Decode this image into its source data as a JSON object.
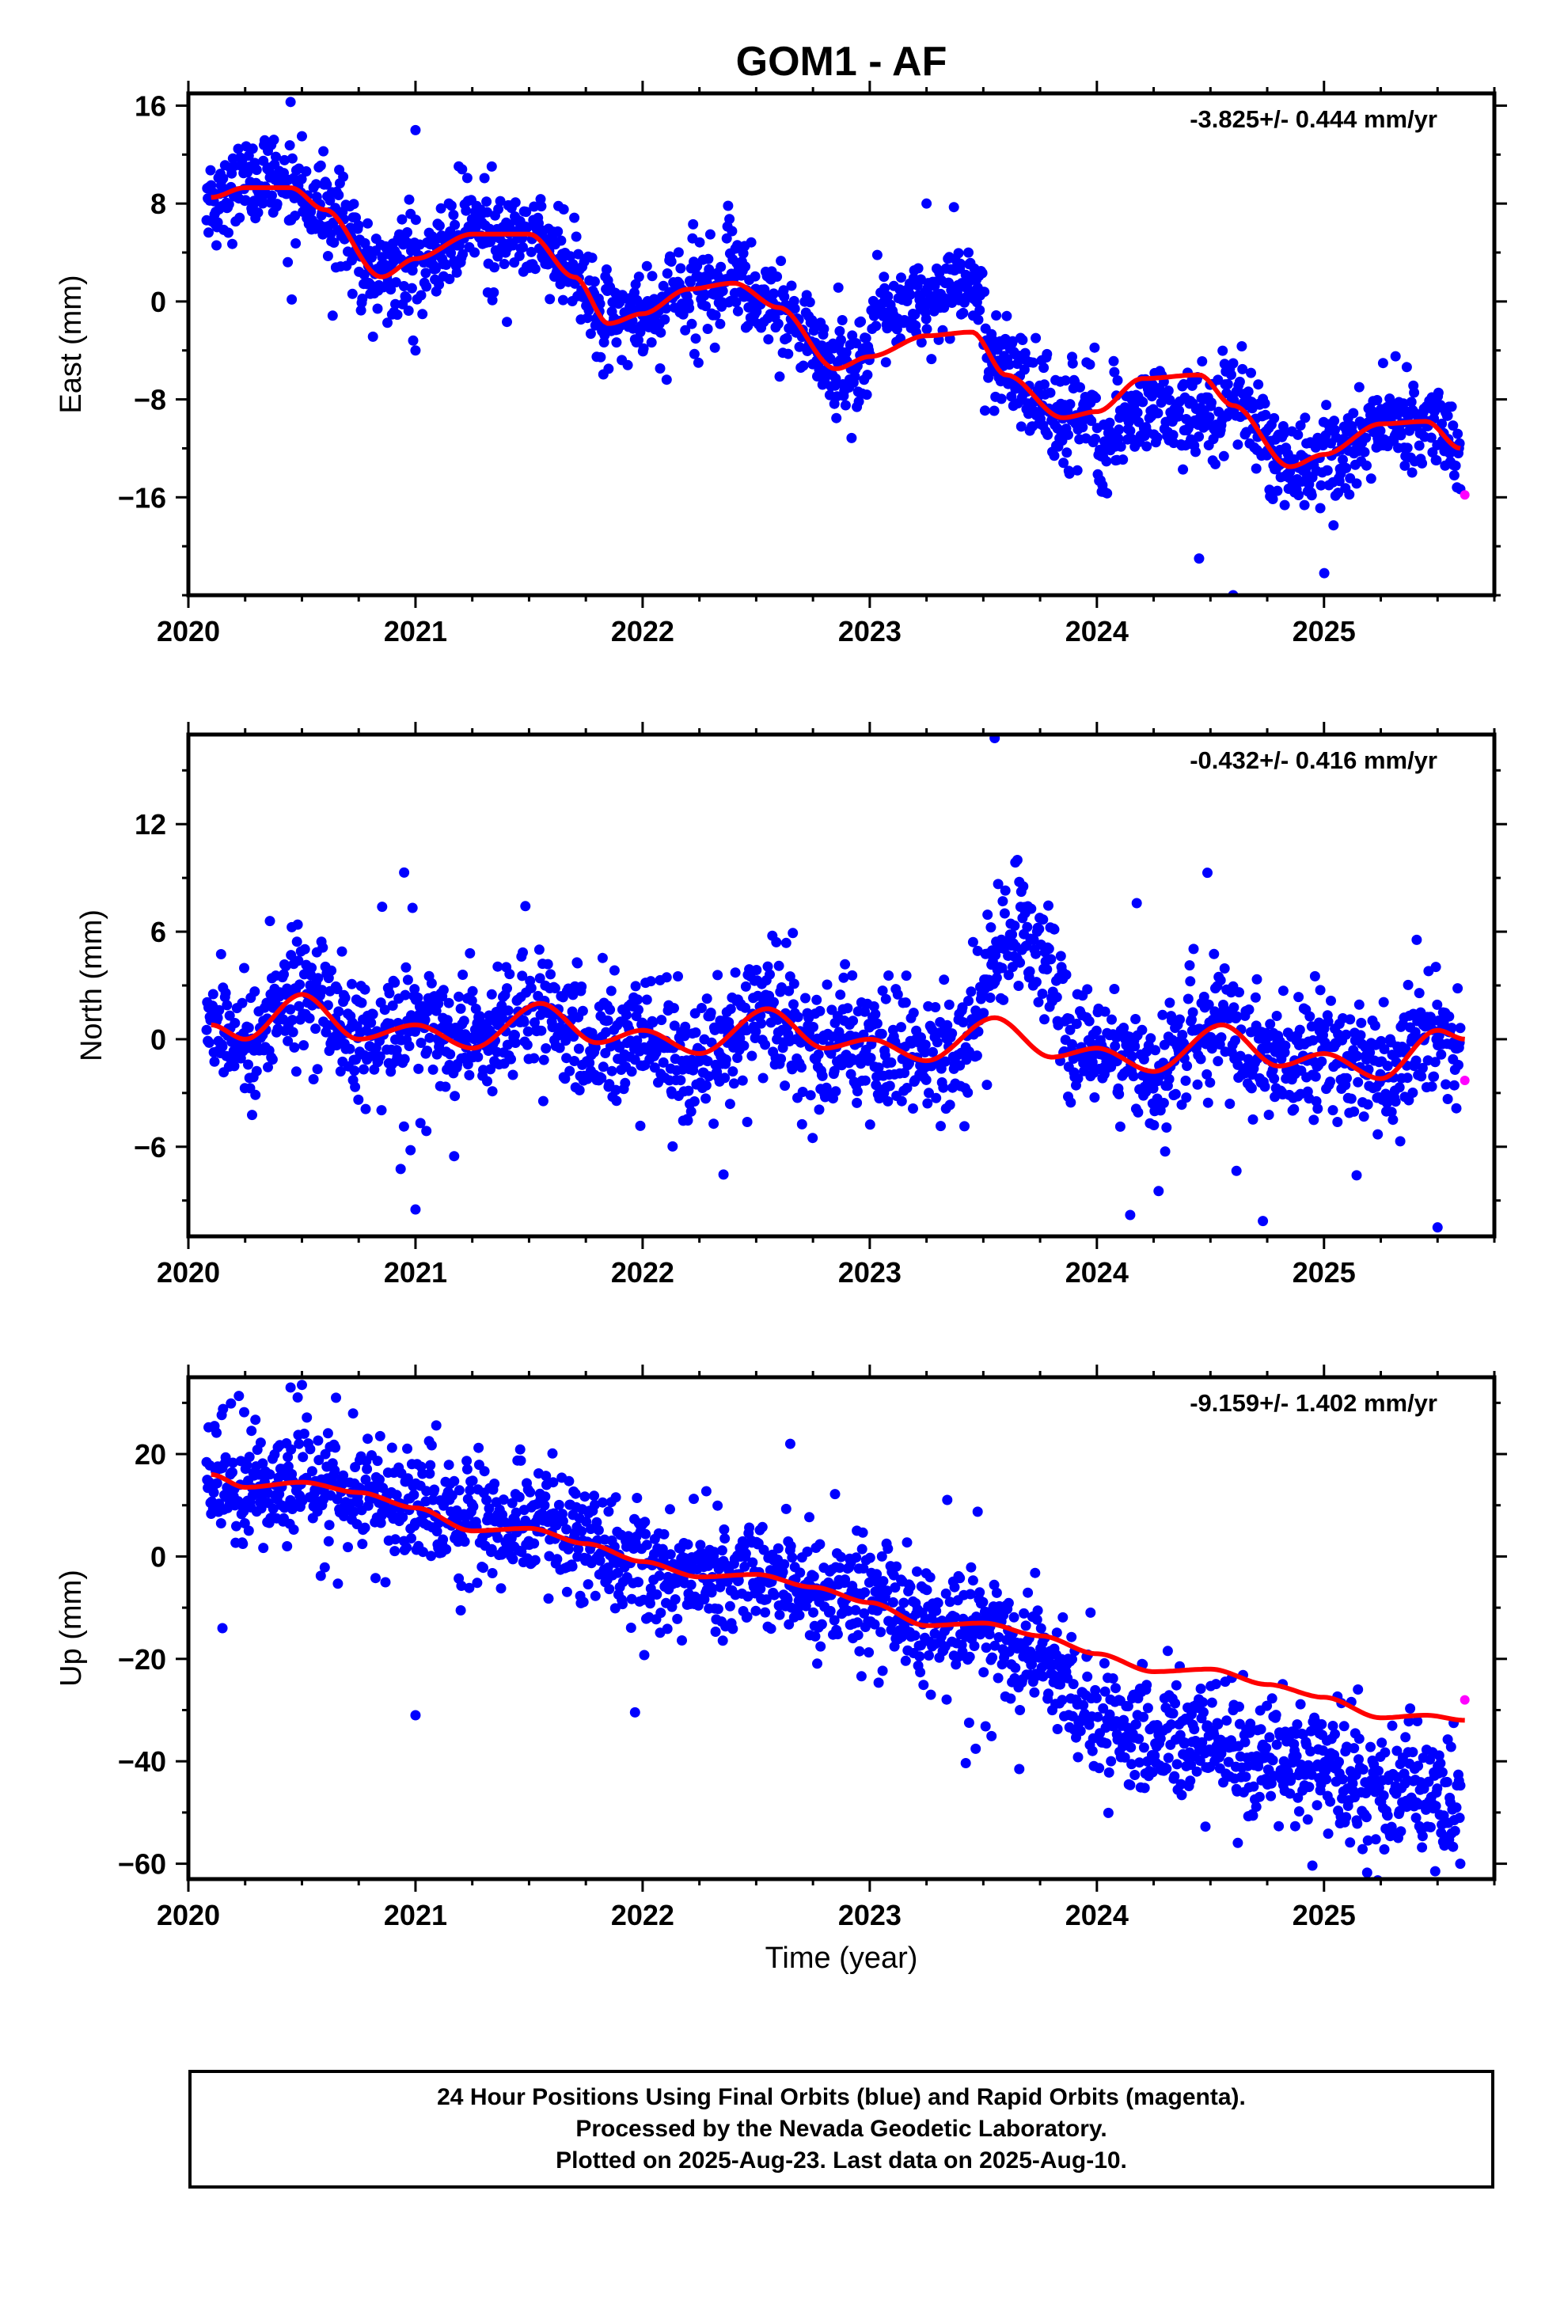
{
  "title": "GOM1 - AF",
  "colors": {
    "final": "#0000ff",
    "rapid": "#ff00ff",
    "model": "#ff0000",
    "axes": "#000000"
  },
  "chart_data": [
    {
      "type": "scatter",
      "name": "east",
      "ylabel": "East (mm)",
      "xlabel": "",
      "rate_label": "-3.825+/- 0.444 mm/yr",
      "xlim": [
        2020.0,
        2025.75
      ],
      "ylim": [
        -24,
        17
      ],
      "yticks": [
        -16,
        -8,
        0,
        8,
        16
      ],
      "yticklabels": [
        "−16",
        "−8",
        "0",
        "8",
        "16"
      ],
      "xticks": [
        2020,
        2021,
        2022,
        2023,
        2024,
        2025
      ],
      "xticklabels": [
        "2020",
        "2021",
        "2022",
        "2023",
        "2024",
        "2025"
      ],
      "grid": false,
      "model_keypoints": [
        [
          2020.1,
          8.5
        ],
        [
          2020.25,
          9.3
        ],
        [
          2020.45,
          9.3
        ],
        [
          2020.6,
          7.5
        ],
        [
          2020.85,
          2.0
        ],
        [
          2021.0,
          3.5
        ],
        [
          2021.25,
          5.5
        ],
        [
          2021.5,
          5.5
        ],
        [
          2021.7,
          2.0
        ],
        [
          2021.85,
          -1.8
        ],
        [
          2022.0,
          -1.0
        ],
        [
          2022.2,
          1.0
        ],
        [
          2022.4,
          1.5
        ],
        [
          2022.6,
          -0.5
        ],
        [
          2022.85,
          -5.5
        ],
        [
          2023.0,
          -4.5
        ],
        [
          2023.25,
          -2.8
        ],
        [
          2023.45,
          -2.5
        ],
        [
          2023.6,
          -6.0
        ],
        [
          2023.85,
          -9.5
        ],
        [
          2024.0,
          -9.0
        ],
        [
          2024.2,
          -6.3
        ],
        [
          2024.45,
          -6.0
        ],
        [
          2024.6,
          -8.5
        ],
        [
          2024.85,
          -13.5
        ],
        [
          2025.0,
          -12.5
        ],
        [
          2025.25,
          -10.0
        ],
        [
          2025.45,
          -9.8
        ],
        [
          2025.6,
          -12.0
        ]
      ],
      "noise_sd": 1.8,
      "rapid_points": [
        [
          2025.62,
          -15.8
        ]
      ],
      "outliers": [
        [
          2020.45,
          16.3
        ],
        [
          2020.5,
          13.5
        ],
        [
          2021.0,
          14.0
        ],
        [
          2021.0,
          -4.0
        ],
        [
          2021.85,
          -5.5
        ],
        [
          2023.25,
          8.0
        ],
        [
          2024.45,
          -21.0
        ],
        [
          2024.6,
          -24.0
        ]
      ]
    },
    {
      "type": "scatter",
      "name": "north",
      "ylabel": "North (mm)",
      "xlabel": "",
      "rate_label": "-0.432+/- 0.416 mm/yr",
      "xlim": [
        2020.0,
        2025.75
      ],
      "ylim": [
        -11,
        17
      ],
      "yticks": [
        -6,
        0,
        6,
        12
      ],
      "yticklabels": [
        "−6",
        "0",
        "6",
        "12"
      ],
      "xticks": [
        2020,
        2021,
        2022,
        2023,
        2024,
        2025
      ],
      "xticklabels": [
        "2020",
        "2021",
        "2022",
        "2023",
        "2024",
        "2025"
      ],
      "grid": false,
      "model_keypoints": [
        [
          2020.1,
          0.8
        ],
        [
          2020.25,
          0.0
        ],
        [
          2020.5,
          2.5
        ],
        [
          2020.75,
          0.0
        ],
        [
          2021.0,
          0.8
        ],
        [
          2021.25,
          -0.5
        ],
        [
          2021.55,
          2.0
        ],
        [
          2021.8,
          -0.2
        ],
        [
          2022.0,
          0.5
        ],
        [
          2022.25,
          -0.8
        ],
        [
          2022.55,
          1.7
        ],
        [
          2022.8,
          -0.5
        ],
        [
          2023.0,
          0.0
        ],
        [
          2023.25,
          -1.2
        ],
        [
          2023.55,
          1.2
        ],
        [
          2023.8,
          -1.0
        ],
        [
          2024.0,
          -0.5
        ],
        [
          2024.25,
          -1.8
        ],
        [
          2024.55,
          0.8
        ],
        [
          2024.8,
          -1.5
        ],
        [
          2025.0,
          -0.8
        ],
        [
          2025.25,
          -2.2
        ],
        [
          2025.5,
          0.5
        ],
        [
          2025.62,
          0.0
        ]
      ],
      "noise_sd": 1.6,
      "rapid_points": [
        [
          2025.62,
          -2.3
        ]
      ],
      "outliers": [
        [
          2021.0,
          -9.5
        ],
        [
          2023.55,
          16.8
        ],
        [
          2023.65,
          10.0
        ],
        [
          2025.5,
          -10.5
        ],
        [
          2020.95,
          9.3
        ]
      ]
    },
    {
      "type": "scatter",
      "name": "up",
      "ylabel": "Up (mm)",
      "xlabel": "Time (year)",
      "rate_label": "-9.159+/- 1.402 mm/yr",
      "xlim": [
        2020.0,
        2025.75
      ],
      "ylim": [
        -63,
        35
      ],
      "yticks": [
        -60,
        -40,
        -20,
        0,
        20
      ],
      "yticklabels": [
        "−60",
        "−40",
        "−20",
        "0",
        "20"
      ],
      "xticks": [
        2020,
        2021,
        2022,
        2023,
        2024,
        2025
      ],
      "xticklabels": [
        "2020",
        "2021",
        "2022",
        "2023",
        "2024",
        "2025"
      ],
      "grid": false,
      "model_keypoints": [
        [
          2020.1,
          16.0
        ],
        [
          2020.25,
          13.5
        ],
        [
          2020.5,
          14.5
        ],
        [
          2020.75,
          12.5
        ],
        [
          2021.0,
          9.5
        ],
        [
          2021.25,
          5.0
        ],
        [
          2021.5,
          5.5
        ],
        [
          2021.75,
          2.5
        ],
        [
          2022.0,
          -1.0
        ],
        [
          2022.25,
          -4.0
        ],
        [
          2022.5,
          -3.5
        ],
        [
          2022.75,
          -6.0
        ],
        [
          2023.0,
          -9.0
        ],
        [
          2023.25,
          -13.5
        ],
        [
          2023.5,
          -13.0
        ],
        [
          2023.75,
          -15.5
        ],
        [
          2024.0,
          -19.0
        ],
        [
          2024.25,
          -22.5
        ],
        [
          2024.5,
          -22.0
        ],
        [
          2024.75,
          -25.0
        ],
        [
          2025.0,
          -27.5
        ],
        [
          2025.25,
          -31.5
        ],
        [
          2025.45,
          -31.0
        ],
        [
          2025.62,
          -32.0
        ]
      ],
      "data_offsets": [
        [
          2023.4,
          0
        ],
        [
          2023.75,
          -6
        ],
        [
          2024.0,
          -12
        ],
        [
          2025.62,
          -14
        ]
      ],
      "noise_sd": 5.5,
      "rapid_points": [
        [
          2025.62,
          -28.0
        ]
      ],
      "outliers": [
        [
          2020.45,
          33.0
        ],
        [
          2020.5,
          33.5
        ],
        [
          2020.65,
          31.0
        ],
        [
          2021.0,
          -31.0
        ],
        [
          2020.15,
          -14.0
        ],
        [
          2025.6,
          -60.0
        ],
        [
          2022.65,
          22.0
        ]
      ]
    }
  ],
  "footer": {
    "line1": "24 Hour Positions Using Final Orbits (blue) and Rapid Orbits (magenta).",
    "line2": "Processed by the Nevada Geodetic Laboratory.",
    "line3": "Plotted on 2025-Aug-23. Last data on 2025-Aug-10."
  }
}
